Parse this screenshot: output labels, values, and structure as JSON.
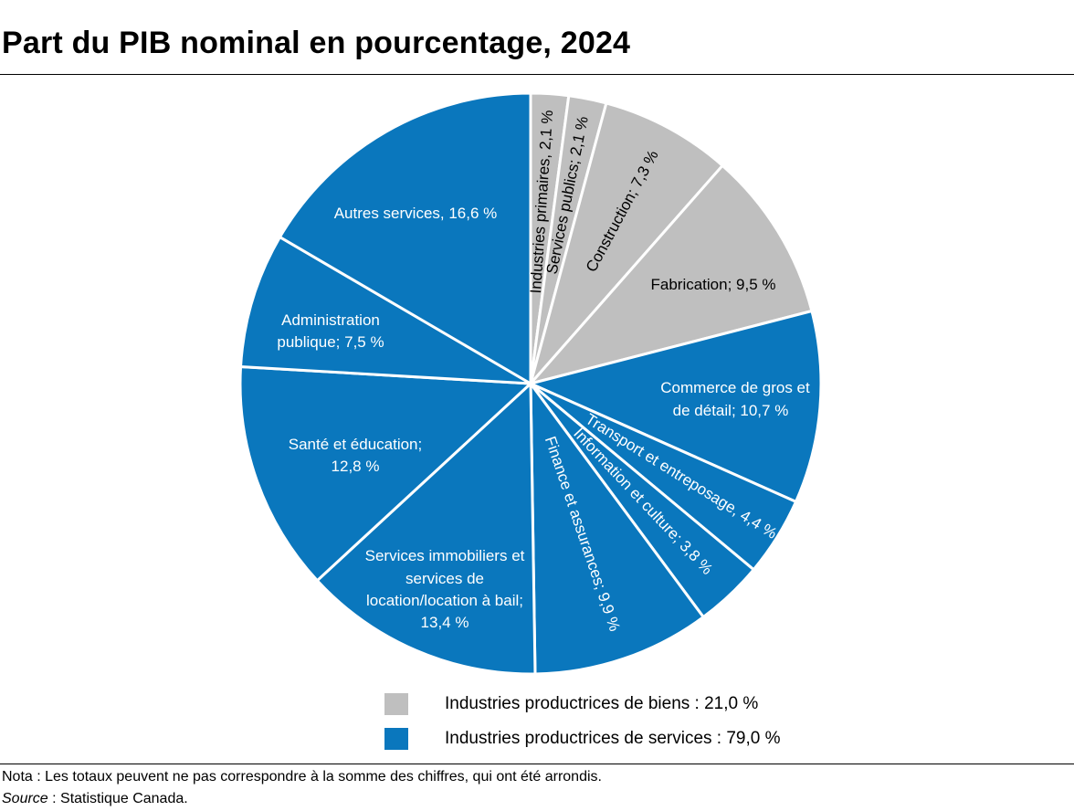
{
  "title": "Part du PIB nominal en pourcentage, 2024",
  "colors": {
    "goods": "#BFBFBF",
    "services": "#0A77BD"
  },
  "chart_data": {
    "type": "pie",
    "title": "Part du PIB nominal en pourcentage, 2024",
    "slices": [
      {
        "label": "Industries primaires, 2,1 %",
        "lines": [
          "Industries primaires, 2,1 %"
        ],
        "value": 2.1,
        "group": "goods"
      },
      {
        "label": "Services publics; 2,1 %",
        "lines": [
          "Services publics; 2,1 %"
        ],
        "value": 2.1,
        "group": "goods"
      },
      {
        "label": "Construction; 7,3 %",
        "lines": [
          "Construction; 7,3 %"
        ],
        "value": 7.3,
        "group": "goods"
      },
      {
        "label": "Fabrication; 9,5 %",
        "lines": [
          "Fabrication; 9,5 %"
        ],
        "value": 9.5,
        "group": "goods"
      },
      {
        "label": "Commerce de gros et de détail; 10,7 %",
        "lines": [
          "Commerce de gros et",
          "de détail; 10,7 %"
        ],
        "value": 10.7,
        "group": "services"
      },
      {
        "label": "Transport et entreposage, 4,4 %",
        "lines": [
          "Transport et entreposage, 4,4 %"
        ],
        "value": 4.4,
        "group": "services"
      },
      {
        "label": "Information et culture; 3,8 %",
        "lines": [
          "Information et culture; 3,8 %"
        ],
        "value": 3.8,
        "group": "services"
      },
      {
        "label": "Finance et assurances; 9,9 %",
        "lines": [
          "Finance et assurances; 9,9 %"
        ],
        "value": 9.9,
        "group": "services"
      },
      {
        "label": "Services immobiliers et services de location/location à bail; 13,4 %",
        "lines": [
          "Services immobiliers et",
          "services de",
          "location/location à bail;",
          "13,4 %"
        ],
        "value": 13.4,
        "group": "services"
      },
      {
        "label": "Santé et éducation; 12,8 %",
        "lines": [
          "Santé et éducation;",
          "12,8 %"
        ],
        "value": 12.8,
        "group": "services"
      },
      {
        "label": "Administration publique; 7,5 %",
        "lines": [
          "Administration",
          "publique; 7,5 %"
        ],
        "value": 7.5,
        "group": "services"
      },
      {
        "label": "Autres services, 16,6 %",
        "lines": [
          "Autres services, 16,6 %"
        ],
        "value": 16.6,
        "group": "services"
      }
    ],
    "legend": [
      {
        "label": "Industries productrices de biens : 21,0 %",
        "group": "goods",
        "value": 21.0
      },
      {
        "label": "Industries productrices de services : 79,0 %",
        "group": "services",
        "value": 79.0
      }
    ],
    "legend_position": "bottom"
  },
  "notes": {
    "nota": "Nota : Les totaux peuvent ne pas correspondre à la somme des chiffres, qui ont été arrondis.",
    "source_label": "Source",
    "source_text": " : Statistique Canada."
  }
}
